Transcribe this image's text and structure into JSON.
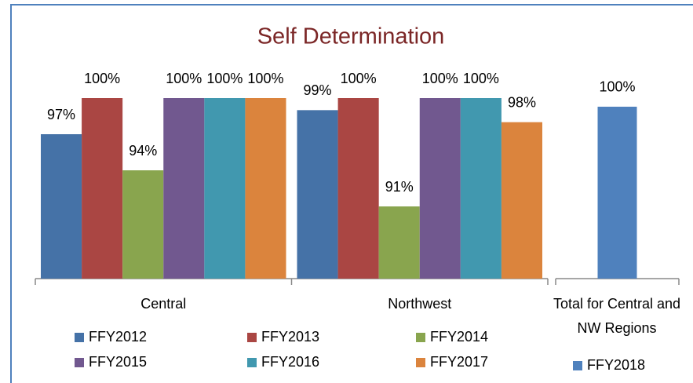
{
  "chart_data": [
    {
      "type": "bar",
      "title": "Self Determination",
      "categories": [
        "Central",
        "Northwest"
      ],
      "ylim": [
        85,
        100
      ],
      "series": [
        {
          "name": "FFY2012",
          "color": "#4572a7",
          "values": [
            97,
            99
          ],
          "value_labels": [
            "97%",
            "99%"
          ]
        },
        {
          "name": "FFY2013",
          "color": "#aa4643",
          "values": [
            100,
            100
          ],
          "value_labels": [
            "100%",
            "100%"
          ]
        },
        {
          "name": "FFY2014",
          "color": "#89a54e",
          "values": [
            94,
            91
          ],
          "value_labels": [
            "94%",
            "91%"
          ]
        },
        {
          "name": "FFY2015",
          "color": "#71588f",
          "values": [
            100,
            100
          ],
          "value_labels": [
            "100%",
            "100%"
          ]
        },
        {
          "name": "FFY2016",
          "color": "#4198af",
          "values": [
            100,
            100
          ],
          "value_labels": [
            "100%",
            "100%"
          ]
        },
        {
          "name": "FFY2017",
          "color": "#db843d",
          "values": [
            100,
            98
          ],
          "value_labels": [
            "100%",
            "98%"
          ]
        }
      ]
    },
    {
      "type": "bar",
      "categories": [
        "Total for Central and NW Regions"
      ],
      "ylim": [
        0,
        105
      ],
      "series": [
        {
          "name": "FFY2018",
          "color": "#4f81bd",
          "values": [
            100
          ],
          "value_labels": [
            "100%"
          ]
        }
      ]
    }
  ]
}
